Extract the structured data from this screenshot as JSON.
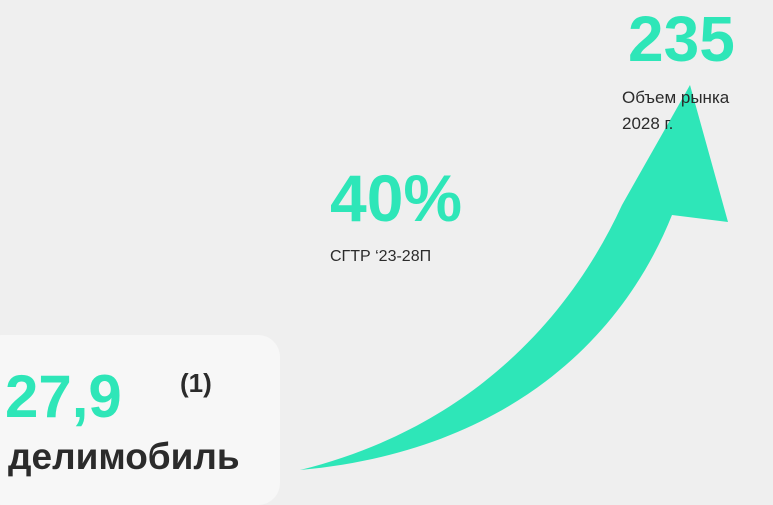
{
  "market": {
    "value": "235",
    "caption_line1": "Объем рынка",
    "caption_line2": "2028 г."
  },
  "growth": {
    "value": "40%",
    "caption": "СГТР ‘23-28П"
  },
  "company": {
    "value": "27,9",
    "footnote": "(1)",
    "name": "делимобиль"
  }
}
